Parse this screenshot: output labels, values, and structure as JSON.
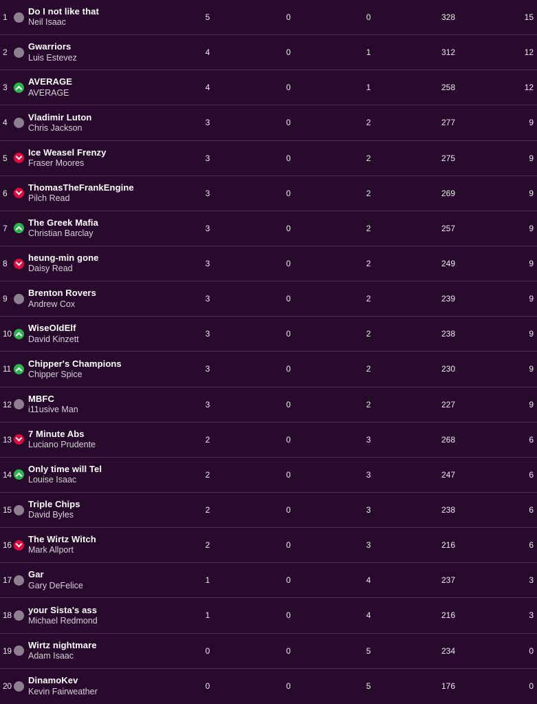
{
  "colors": {
    "row_bg": "#280a2c",
    "divider": "rgba(255,255,255,0.15)",
    "movement_up": "#29b54b",
    "movement_down": "#e10a3c",
    "movement_same": "#8d7f90"
  },
  "icons": {
    "up": "chevron-up-in-green-circle",
    "down": "chevron-down-in-red-circle",
    "same": "plain-gray-circle"
  },
  "table": {
    "rows": [
      {
        "rank": "1",
        "movement": "same",
        "team": "Do I not like that",
        "manager": "Neil Isaac",
        "won": "5",
        "drawn": "0",
        "lost": "0",
        "score": "328",
        "points": "15"
      },
      {
        "rank": "2",
        "movement": "same",
        "team": "Gwarriors",
        "manager": "Luis Estevez",
        "won": "4",
        "drawn": "0",
        "lost": "1",
        "score": "312",
        "points": "12"
      },
      {
        "rank": "3",
        "movement": "up",
        "team": "AVERAGE",
        "manager": "AVERAGE",
        "won": "4",
        "drawn": "0",
        "lost": "1",
        "score": "258",
        "points": "12"
      },
      {
        "rank": "4",
        "movement": "same",
        "team": "Vladimir Luton",
        "manager": "Chris Jackson",
        "won": "3",
        "drawn": "0",
        "lost": "2",
        "score": "277",
        "points": "9"
      },
      {
        "rank": "5",
        "movement": "down",
        "team": "Ice Weasel Frenzy",
        "manager": "Fraser Moores",
        "won": "3",
        "drawn": "0",
        "lost": "2",
        "score": "275",
        "points": "9"
      },
      {
        "rank": "6",
        "movement": "down",
        "team": "ThomasTheFrankEngine",
        "manager": "Pilch Read",
        "won": "3",
        "drawn": "0",
        "lost": "2",
        "score": "269",
        "points": "9"
      },
      {
        "rank": "7",
        "movement": "up",
        "team": "The Greek Mafia",
        "manager": "Christian Barclay",
        "won": "3",
        "drawn": "0",
        "lost": "2",
        "score": "257",
        "points": "9"
      },
      {
        "rank": "8",
        "movement": "down",
        "team": "heung-min gone",
        "manager": "Daisy Read",
        "won": "3",
        "drawn": "0",
        "lost": "2",
        "score": "249",
        "points": "9"
      },
      {
        "rank": "9",
        "movement": "same",
        "team": "Brenton Rovers",
        "manager": "Andrew Cox",
        "won": "3",
        "drawn": "0",
        "lost": "2",
        "score": "239",
        "points": "9"
      },
      {
        "rank": "10",
        "movement": "up",
        "team": "WiseOldElf",
        "manager": "David Kinzett",
        "won": "3",
        "drawn": "0",
        "lost": "2",
        "score": "238",
        "points": "9"
      },
      {
        "rank": "11",
        "movement": "up",
        "team": "Chipper's Champions",
        "manager": "Chipper Spice",
        "won": "3",
        "drawn": "0",
        "lost": "2",
        "score": "230",
        "points": "9"
      },
      {
        "rank": "12",
        "movement": "same",
        "team": "MBFC",
        "manager": "i11usive Man",
        "won": "3",
        "drawn": "0",
        "lost": "2",
        "score": "227",
        "points": "9"
      },
      {
        "rank": "13",
        "movement": "down",
        "team": "7 Minute Abs",
        "manager": "Luciano Prudente",
        "won": "2",
        "drawn": "0",
        "lost": "3",
        "score": "268",
        "points": "6"
      },
      {
        "rank": "14",
        "movement": "up",
        "team": "Only time will Tel",
        "manager": "Louise Isaac",
        "won": "2",
        "drawn": "0",
        "lost": "3",
        "score": "247",
        "points": "6"
      },
      {
        "rank": "15",
        "movement": "same",
        "team": "Triple Chips",
        "manager": "David Byles",
        "won": "2",
        "drawn": "0",
        "lost": "3",
        "score": "238",
        "points": "6"
      },
      {
        "rank": "16",
        "movement": "down",
        "team": "The Wirtz Witch",
        "manager": "Mark Allport",
        "won": "2",
        "drawn": "0",
        "lost": "3",
        "score": "216",
        "points": "6"
      },
      {
        "rank": "17",
        "movement": "same",
        "team": "Gar",
        "manager": "Gary DeFelice",
        "won": "1",
        "drawn": "0",
        "lost": "4",
        "score": "237",
        "points": "3"
      },
      {
        "rank": "18",
        "movement": "same",
        "team": "your Sista's ass",
        "manager": "Michael Redmond",
        "won": "1",
        "drawn": "0",
        "lost": "4",
        "score": "216",
        "points": "3"
      },
      {
        "rank": "19",
        "movement": "same",
        "team": "Wirtz nightmare",
        "manager": "Adam Isaac",
        "won": "0",
        "drawn": "0",
        "lost": "5",
        "score": "234",
        "points": "0"
      },
      {
        "rank": "20",
        "movement": "same",
        "team": "DinamoKev",
        "manager": "Kevin Fairweather",
        "won": "0",
        "drawn": "0",
        "lost": "5",
        "score": "176",
        "points": "0"
      }
    ]
  }
}
